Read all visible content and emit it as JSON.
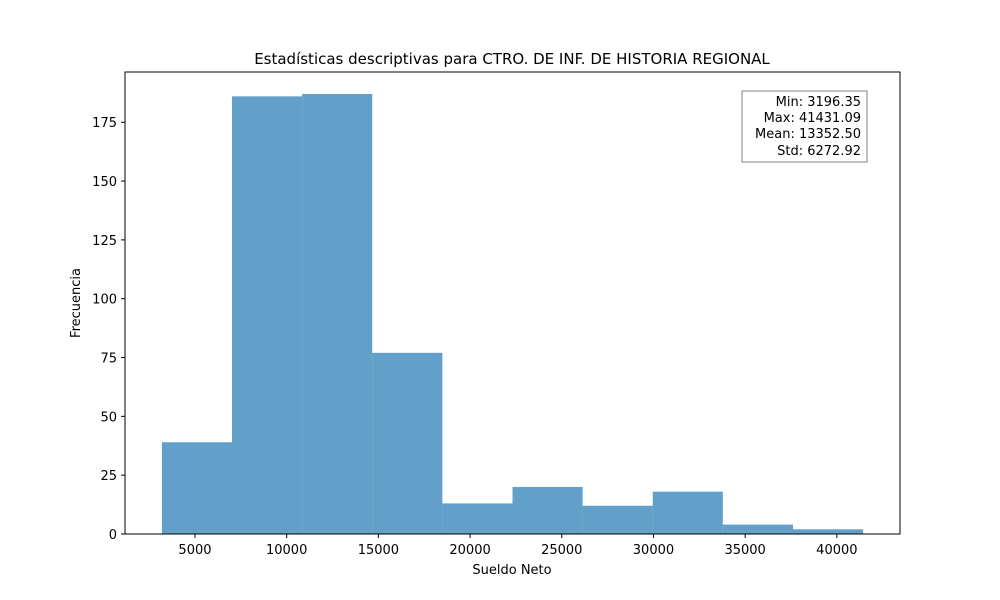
{
  "chart_data": {
    "type": "bar",
    "title": "Estadísticas descriptivas para CTRO. DE INF. DE HISTORIA REGIONAL",
    "xlabel": "Sueldo Neto",
    "ylabel": "Frecuencia",
    "bin_edges": [
      3196.35,
      7019.82,
      10843.3,
      14666.77,
      18490.24,
      22313.72,
      26137.19,
      29960.66,
      33784.14,
      37607.61,
      41431.09
    ],
    "values": [
      39,
      186,
      187,
      77,
      13,
      20,
      12,
      18,
      4,
      2
    ],
    "xlim": [
      1184.6,
      43442.8
    ],
    "ylim": [
      0,
      196.35
    ],
    "xticks": [
      5000,
      10000,
      15000,
      20000,
      25000,
      30000,
      35000,
      40000
    ],
    "yticks": [
      0,
      25,
      50,
      75,
      100,
      125,
      150,
      175
    ],
    "bar_color": "#1f77b4",
    "bar_alpha": 0.7,
    "grid": false,
    "stats_box": {
      "placement": "top-right",
      "lines": [
        "Min: 3196.35",
        "Max: 41431.09",
        "Mean: 13352.50",
        "Std: 6272.92"
      ]
    }
  }
}
